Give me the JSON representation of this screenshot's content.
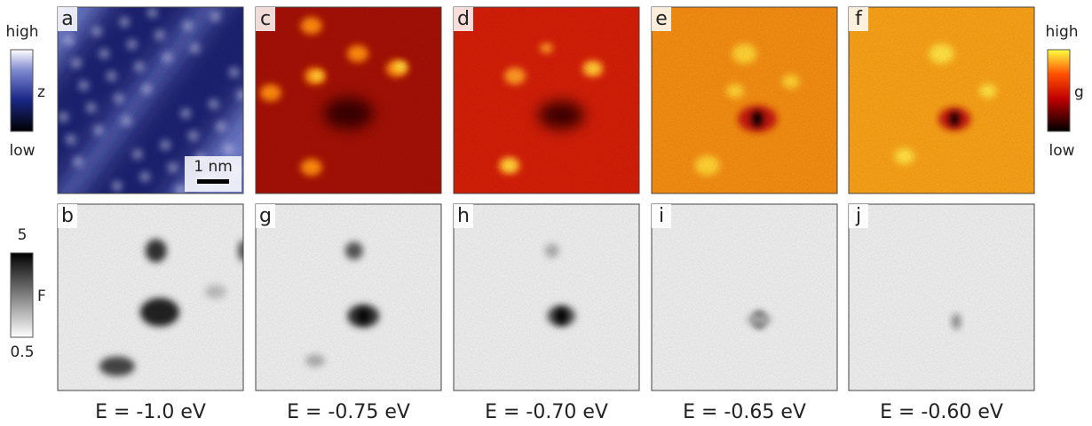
{
  "colorbars": [
    {
      "high": "high",
      "low": "low",
      "label": "z"
    },
    {
      "high": "high",
      "low": "low",
      "label": "g"
    },
    {
      "high": "5",
      "low": "0.5",
      "label": "F"
    }
  ],
  "panels": [
    {
      "label": "a"
    },
    {
      "label": "c"
    },
    {
      "label": "d"
    },
    {
      "label": "e"
    },
    {
      "label": "f"
    },
    {
      "label": "b"
    },
    {
      "label": "g"
    },
    {
      "label": "h"
    },
    {
      "label": "i"
    },
    {
      "label": "j"
    }
  ],
  "scale_bar": "1 nm",
  "energies": [
    "E = -1.0 eV",
    "E = -0.75 eV",
    "E = -0.70 eV",
    "E = -0.65 eV",
    "E = -0.60 eV"
  ]
}
